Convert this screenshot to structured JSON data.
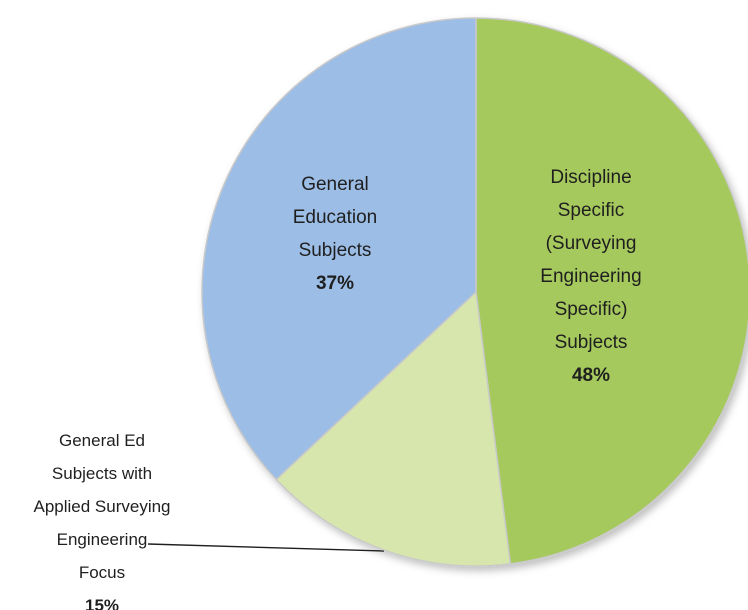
{
  "chart_data": {
    "type": "pie",
    "title": "",
    "slices": [
      {
        "label_lines": [
          "Discipline",
          "Specific",
          "(Surveying",
          "Engineering",
          "Specific)",
          "Subjects"
        ],
        "value": 48,
        "value_label": "48%",
        "color": "#a6c95d"
      },
      {
        "label_lines": [
          "General Ed",
          "Subjects with",
          "Applied Surveying",
          "Engineering",
          "Focus"
        ],
        "value": 15,
        "value_label": "15%",
        "color": "#d6e6ad"
      },
      {
        "label_lines": [
          "General",
          "Education",
          "Subjects"
        ],
        "value": 37,
        "value_label": "37%",
        "color": "#9cbde6"
      }
    ],
    "start_angle_deg": 0,
    "direction": "clockwise",
    "edge_color": "#c9c9c9"
  }
}
